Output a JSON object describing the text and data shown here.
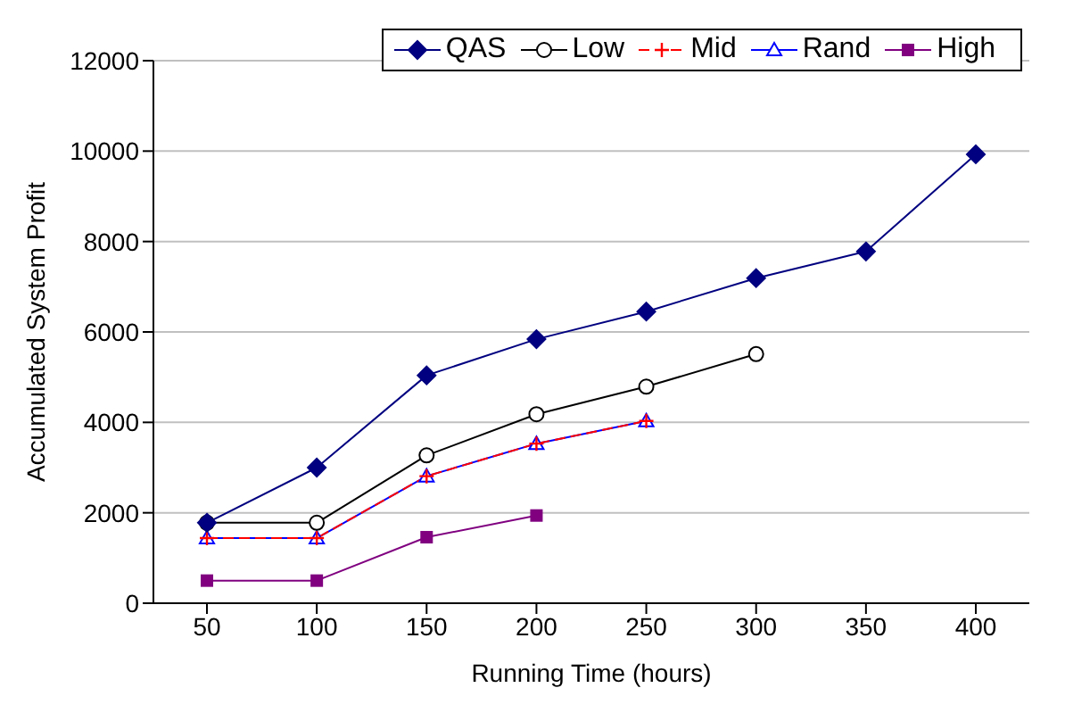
{
  "chart_data": {
    "type": "line",
    "xlabel": "Running Time (hours)",
    "ylabel": "Accumulated System Profit",
    "categories": [
      "50",
      "100",
      "150",
      "200",
      "250",
      "300",
      "350",
      "400"
    ],
    "ylim": [
      0,
      12000
    ],
    "yticks": [
      0,
      2000,
      4000,
      6000,
      8000,
      10000,
      12000
    ],
    "grid": "y",
    "legend": "top right",
    "series": [
      {
        "name": "QAS",
        "color": "#000080",
        "marker": "diamond",
        "line_style": "solid",
        "values": [
          1780,
          3000,
          5040,
          5840,
          6450,
          7190,
          7780,
          9930
        ]
      },
      {
        "name": "Low",
        "color": "#000000",
        "marker": "circle",
        "line_style": "solid",
        "values": [
          1780,
          1780,
          3270,
          4180,
          4790,
          5510,
          null,
          null
        ]
      },
      {
        "name": "Mid",
        "color": "#ff0000",
        "marker": "cross",
        "line_style": "dashed",
        "values": [
          1440,
          1440,
          2810,
          3530,
          4030,
          null,
          null,
          null
        ]
      },
      {
        "name": "Rand",
        "color": "#0000ff",
        "marker": "triangle",
        "line_style": "solid",
        "values": [
          1440,
          1440,
          2810,
          3530,
          4030,
          null,
          null,
          null
        ]
      },
      {
        "name": "High",
        "color": "#800080",
        "marker": "square",
        "line_style": "solid",
        "values": [
          500,
          500,
          1460,
          1940,
          null,
          null,
          null,
          null
        ]
      }
    ]
  }
}
